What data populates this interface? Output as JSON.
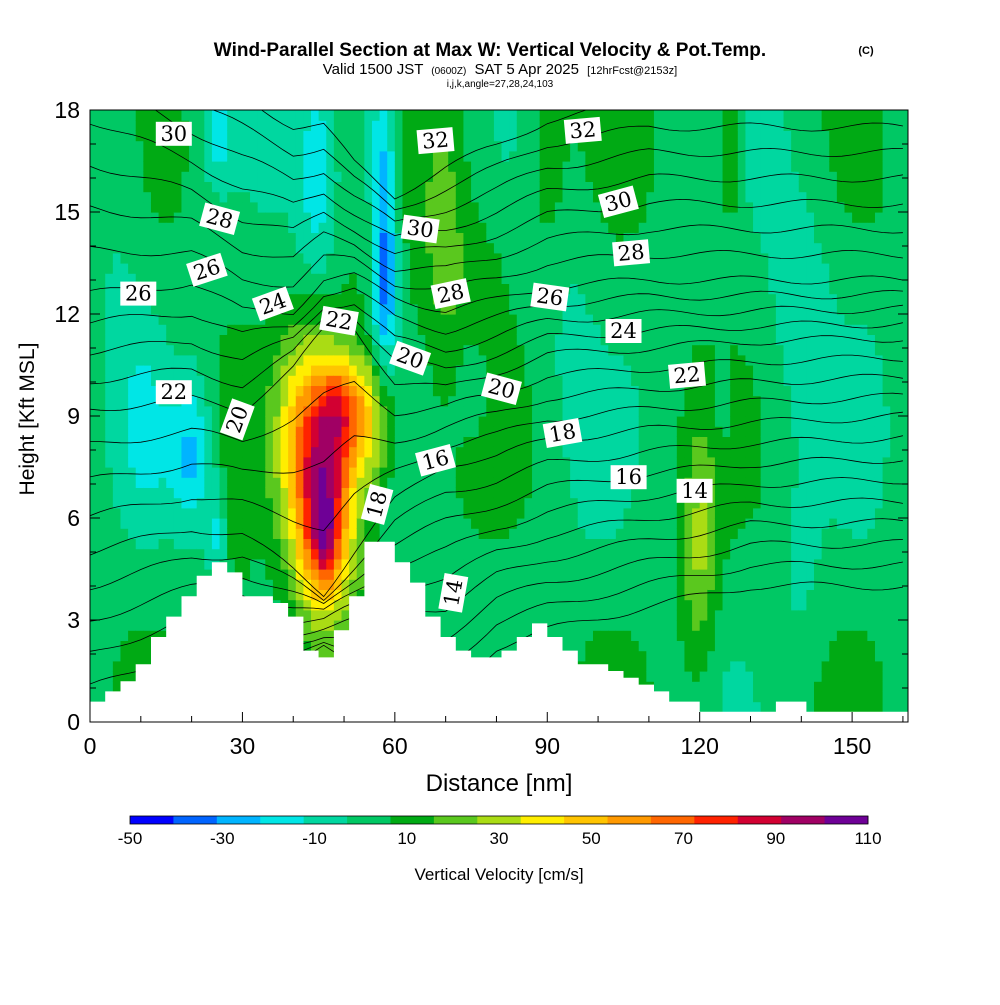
{
  "chart_data": {
    "type": "heatmap",
    "title": "Wind-Parallel Section at Max W: Vertical Velocity & Pot.Temp.",
    "title_mark": "(C)",
    "subtitle_parts": [
      "Valid 1500 JST",
      "(0600Z)",
      "SAT 5 Apr 2025",
      "[12hrFcst@2153z]"
    ],
    "subtitle2": "i,j,k,angle=27,28,24,103",
    "xlabel": "Distance [nm]",
    "ylabel": "Height [Kft MSL]",
    "xlim": [
      0,
      161
    ],
    "ylim": [
      0,
      18
    ],
    "x_ticks": [
      0,
      30,
      60,
      90,
      120,
      150
    ],
    "y_ticks": [
      0,
      3,
      6,
      9,
      12,
      15,
      18
    ],
    "colorbar": {
      "label": "Vertical Velocity [cm/s]",
      "tick_labels": [
        "-50",
        "-30",
        "-10",
        "10",
        "30",
        "50",
        "70",
        "90",
        "110"
      ],
      "boundaries": [
        -50,
        -40,
        -30,
        -20,
        -10,
        0,
        10,
        20,
        30,
        40,
        50,
        60,
        70,
        80,
        90,
        100,
        110
      ],
      "colors": [
        "#0000ff",
        "#0064ff",
        "#00b4ff",
        "#00e6e6",
        "#00d7a0",
        "#00c864",
        "#00aa14",
        "#5ac81e",
        "#aadc14",
        "#ffee00",
        "#ffc400",
        "#ff9900",
        "#ff6600",
        "#ff2200",
        "#d20032",
        "#a00064",
        "#6e0096"
      ]
    },
    "terrain": {
      "x": [
        0,
        3,
        3,
        6,
        6,
        9,
        9,
        12,
        12,
        15,
        15,
        18,
        18,
        21,
        21,
        24,
        24,
        27,
        27,
        30,
        30,
        36,
        36,
        39,
        39,
        42,
        42,
        45,
        45,
        48,
        48,
        51,
        51,
        54,
        54,
        57,
        57,
        60,
        60,
        63,
        63,
        66,
        66,
        69,
        69,
        72,
        72,
        75,
        75,
        78,
        78,
        81,
        81,
        84,
        84,
        87,
        87,
        90,
        90,
        93,
        93,
        96,
        96,
        99,
        99,
        102,
        102,
        105,
        105,
        108,
        108,
        111,
        111,
        114,
        114,
        117,
        117,
        120,
        120,
        123,
        123,
        135,
        135,
        141,
        141,
        144,
        144,
        161
      ],
      "y": [
        0.6,
        0.6,
        0.9,
        0.9,
        1.2,
        1.2,
        1.7,
        1.7,
        2.5,
        2.5,
        3.1,
        3.1,
        3.7,
        3.7,
        4.3,
        4.3,
        4.7,
        4.7,
        4.4,
        4.4,
        3.7,
        3.7,
        3.5,
        3.5,
        3.1,
        3.1,
        2.1,
        2.1,
        1.9,
        1.9,
        2.7,
        2.7,
        3.7,
        3.7,
        5.3,
        5.3,
        5.3,
        5.3,
        4.7,
        4.7,
        4.1,
        4.1,
        3.1,
        3.1,
        2.5,
        2.5,
        2.1,
        2.1,
        1.9,
        1.9,
        1.9,
        1.9,
        2.1,
        2.1,
        2.5,
        2.5,
        2.9,
        2.9,
        2.5,
        2.5,
        2.1,
        2.1,
        1.7,
        1.7,
        1.7,
        1.7,
        1.5,
        1.5,
        1.3,
        1.3,
        1.1,
        1.1,
        0.9,
        0.9,
        0.6,
        0.6,
        0.6,
        0.6,
        0.3,
        0.3,
        0.3,
        0.3,
        0.6,
        0.6,
        0.3,
        0.3,
        0.3,
        0.3
      ]
    },
    "w_features": [
      {
        "x": 46,
        "y": 7.0,
        "amplitude": 95,
        "sx": 4.5,
        "sy": 2.6
      },
      {
        "x": 46,
        "y": 5.5,
        "amplitude": 30,
        "sx": 2.0,
        "sy": 1.0
      },
      {
        "x": 50,
        "y": 9.2,
        "amplitude": 40,
        "sx": 3.5,
        "sy": 1.0
      },
      {
        "x": 56,
        "y": 8.8,
        "amplitude": 30,
        "sx": 3.0,
        "sy": 1.5
      },
      {
        "x": 40,
        "y": 9.0,
        "amplitude": 15,
        "sx": 3.0,
        "sy": 2.0
      },
      {
        "x": 58,
        "y": 12.0,
        "amplitude": 5,
        "sx": 4.0,
        "sy": 3.0
      },
      {
        "x": 70,
        "y": 14.5,
        "amplitude": 20,
        "sx": 3.5,
        "sy": 3.0
      },
      {
        "x": 78,
        "y": 12.0,
        "amplitude": 10,
        "sx": 3.0,
        "sy": 3.0
      },
      {
        "x": 120,
        "y": 5.0,
        "amplitude": 25,
        "sx": 2.5,
        "sy": 2.5
      },
      {
        "x": 126,
        "y": 17.5,
        "amplitude": 25,
        "sx": 2.0,
        "sy": 2.0
      },
      {
        "x": 90,
        "y": 16.0,
        "amplitude": 10,
        "sx": 3.0,
        "sy": 2.5
      },
      {
        "x": 28,
        "y": 7.0,
        "amplitude": 8,
        "sx": 3.0,
        "sy": 3.0
      },
      {
        "x": 20,
        "y": 7.8,
        "amplitude": -25,
        "sx": 3.0,
        "sy": 1.5
      },
      {
        "x": 11,
        "y": 8.5,
        "amplitude": -12,
        "sx": 3.0,
        "sy": 2.0
      },
      {
        "x": 25,
        "y": 5.5,
        "amplitude": -20,
        "sx": 1.5,
        "sy": 1.2
      },
      {
        "x": 58,
        "y": 13.2,
        "amplitude": -45,
        "sx": 1.8,
        "sy": 2.2
      },
      {
        "x": 57,
        "y": 17.0,
        "amplitude": -25,
        "sx": 2.5,
        "sy": 1.5
      },
      {
        "x": 45,
        "y": 16.0,
        "amplitude": -20,
        "sx": 3.0,
        "sy": 2.5
      },
      {
        "x": 25,
        "y": 17.2,
        "amplitude": -20,
        "sx": 2.0,
        "sy": 1.0
      },
      {
        "x": 76,
        "y": 10.0,
        "amplitude": -15,
        "sx": 3.0,
        "sy": 1.2
      },
      {
        "x": 94,
        "y": 12.0,
        "amplitude": -8,
        "sx": 4.0,
        "sy": 3.0
      },
      {
        "x": 100,
        "y": 7.5,
        "amplitude": -8,
        "sx": 3.0,
        "sy": 1.5
      },
      {
        "x": 140,
        "y": 13.0,
        "amplitude": -12,
        "sx": 5.0,
        "sy": 3.0
      },
      {
        "x": 130,
        "y": 17.5,
        "amplitude": -10,
        "sx": 4.0,
        "sy": 1.2
      },
      {
        "x": 124,
        "y": 9.2,
        "amplitude": -8,
        "sx": 2.0,
        "sy": 1.0
      },
      {
        "x": 140,
        "y": 4.5,
        "amplitude": -8,
        "sx": 3.0,
        "sy": 2.0
      },
      {
        "x": 152,
        "y": 8.5,
        "amplitude": -8,
        "sx": 3.0,
        "sy": 2.0
      },
      {
        "x": 6,
        "y": 14.0,
        "amplitude": -8,
        "sx": 4.0,
        "sy": 4.0
      }
    ],
    "w_background": 6,
    "theta_contours": {
      "values_degC": [
        10,
        11,
        12,
        13,
        14,
        15,
        16,
        17,
        18,
        19,
        20,
        21,
        22,
        23,
        24,
        25,
        26,
        27,
        28,
        29,
        30,
        31,
        32,
        33
      ],
      "height_profile_kft": {
        "x": [
          0,
          20,
          30,
          40,
          46,
          52,
          60,
          70,
          80,
          90,
          110,
          130,
          161
        ],
        "theta14": [
          1.0,
          2.2,
          3.2,
          3.0,
          3.0,
          3.4,
          4.0,
          4.2,
          5.0,
          5.5,
          6.0,
          6.4,
          6.5
        ],
        "theta18": [
          5.0,
          5.7,
          5.5,
          4.5,
          3.8,
          5.0,
          6.5,
          7.6,
          7.8,
          8.3,
          8.6,
          8.8,
          9.0
        ],
        "theta22": [
          9.2,
          9.5,
          9.2,
          10.4,
          11.5,
          11.6,
          10.0,
          9.8,
          10.3,
          10.8,
          11.0,
          11.2,
          11.3
        ],
        "theta26": [
          12.6,
          12.9,
          12.1,
          12.1,
          13.0,
          13.1,
          12.5,
          12.1,
          12.4,
          12.8,
          13.0,
          13.0,
          13.0
        ],
        "theta30": [
          17.7,
          16.5,
          15.7,
          15.2,
          15.6,
          15.0,
          14.2,
          14.5,
          15.0,
          15.6,
          16.0,
          16.0,
          16.0
        ]
      },
      "labels": [
        {
          "text": "30",
          "x": 16.5,
          "y": 17.3,
          "angle": 0
        },
        {
          "text": "28",
          "x": 25.5,
          "y": 14.8,
          "angle": 15
        },
        {
          "text": "26",
          "x": 9.5,
          "y": 12.6,
          "angle": 0
        },
        {
          "text": "26",
          "x": 23,
          "y": 13.3,
          "angle": -18
        },
        {
          "text": "24",
          "x": 36,
          "y": 12.3,
          "angle": -20
        },
        {
          "text": "22",
          "x": 16.5,
          "y": 9.7,
          "angle": 0
        },
        {
          "text": "22",
          "x": 49,
          "y": 11.8,
          "angle": 10
        },
        {
          "text": "20",
          "x": 29,
          "y": 8.9,
          "angle": -70
        },
        {
          "text": "20",
          "x": 63,
          "y": 10.7,
          "angle": 20
        },
        {
          "text": "20",
          "x": 81,
          "y": 9.8,
          "angle": 15
        },
        {
          "text": "32",
          "x": 68,
          "y": 17.1,
          "angle": -5
        },
        {
          "text": "32",
          "x": 97,
          "y": 17.4,
          "angle": -5
        },
        {
          "text": "30",
          "x": 65,
          "y": 14.5,
          "angle": 8
        },
        {
          "text": "30",
          "x": 104,
          "y": 15.3,
          "angle": -15
        },
        {
          "text": "28",
          "x": 71,
          "y": 12.6,
          "angle": -12
        },
        {
          "text": "28",
          "x": 106.5,
          "y": 13.8,
          "angle": -5
        },
        {
          "text": "26",
          "x": 90.5,
          "y": 12.5,
          "angle": 8
        },
        {
          "text": "24",
          "x": 105,
          "y": 11.5,
          "angle": 0
        },
        {
          "text": "22",
          "x": 117.5,
          "y": 10.2,
          "angle": -5
        },
        {
          "text": "18",
          "x": 93,
          "y": 8.5,
          "angle": -10
        },
        {
          "text": "18",
          "x": 56.5,
          "y": 6.4,
          "angle": -75
        },
        {
          "text": "16",
          "x": 68,
          "y": 7.7,
          "angle": -15
        },
        {
          "text": "16",
          "x": 106,
          "y": 7.2,
          "angle": 0
        },
        {
          "text": "14",
          "x": 119,
          "y": 6.8,
          "angle": 0
        },
        {
          "text": "14",
          "x": 71.5,
          "y": 3.8,
          "angle": -80
        }
      ]
    }
  }
}
